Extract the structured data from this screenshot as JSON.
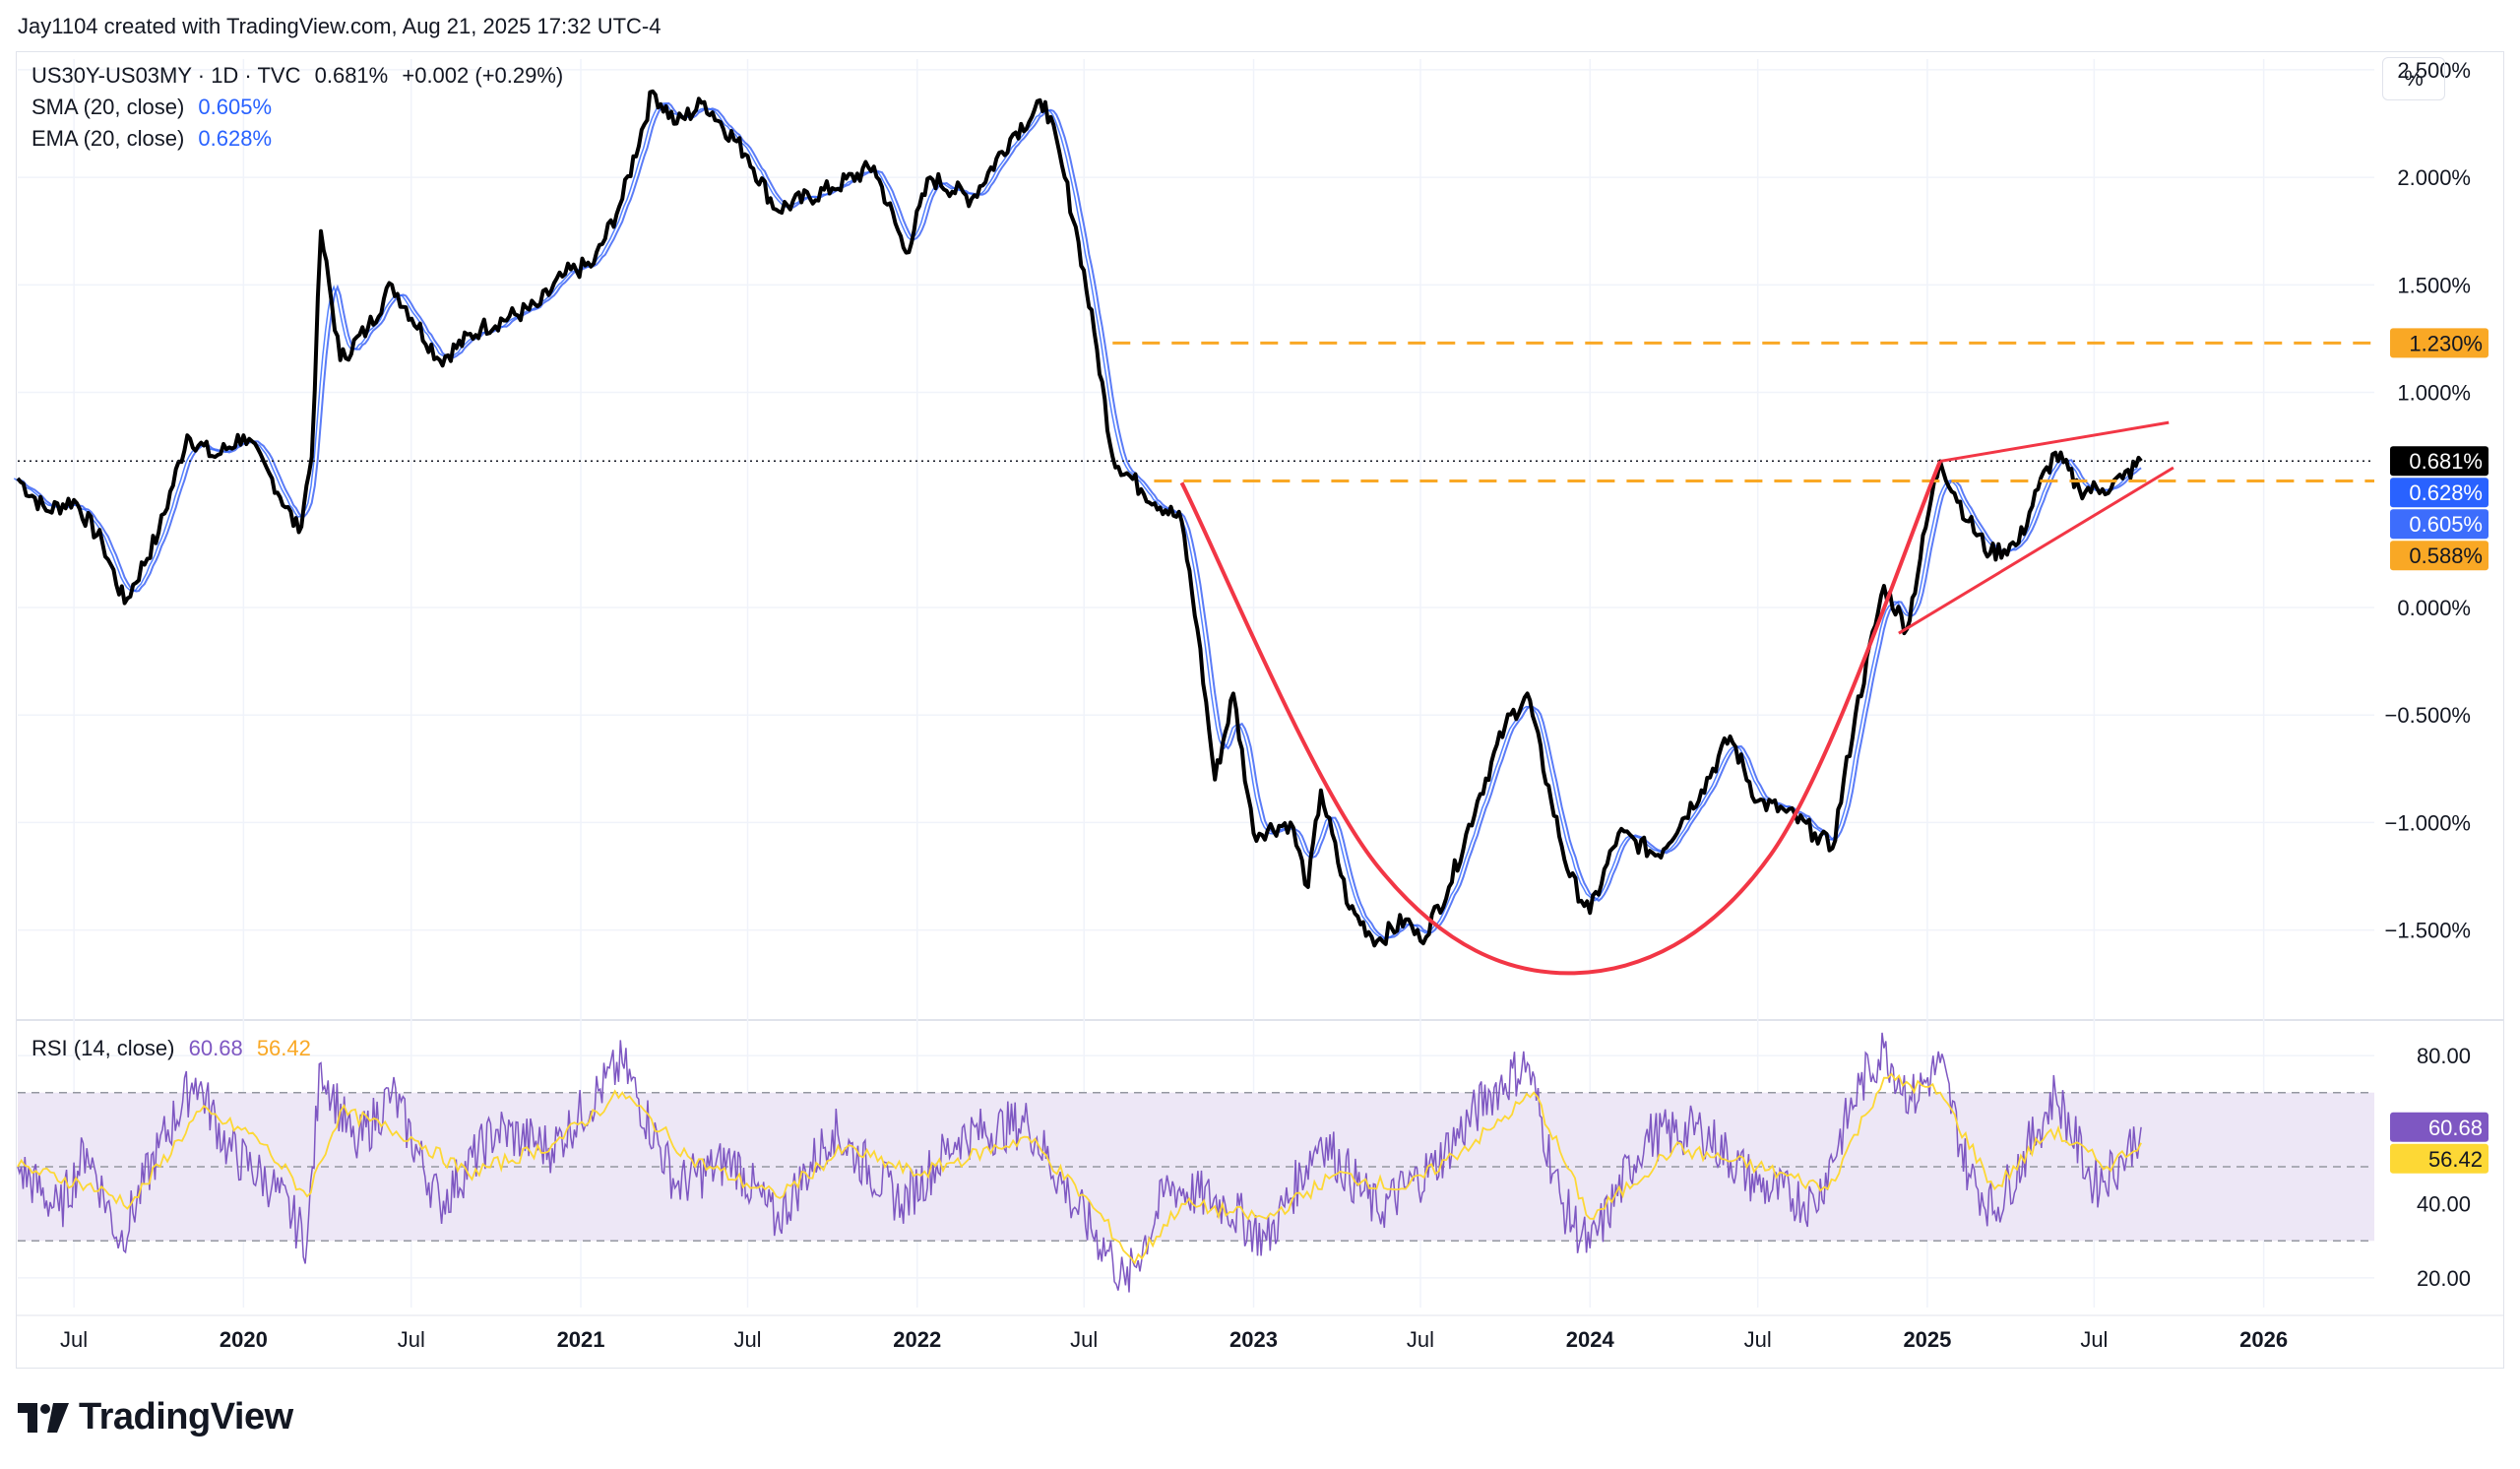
{
  "header": {
    "attribution": "Jay1104 created with TradingView.com, Aug 21, 2025 17:32 UTC-4"
  },
  "main_legend": {
    "symbol": "US30Y-US03MY · 1D · TVC",
    "price": "0.681%",
    "change": "+0.002 (+0.29%)",
    "sma_label": "SMA (20, close)",
    "sma_value": "0.605%",
    "ema_label": "EMA (20, close)",
    "ema_value": "0.628%"
  },
  "rsi_legend": {
    "label": "RSI (14, close)",
    "rsi_value": "60.68",
    "ma_value": "56.42"
  },
  "unit_button": "%",
  "footer": {
    "brand": "TradingView"
  },
  "colors": {
    "price_line": "#000000",
    "sma": "#2962ff",
    "ema": "#5b7cf7",
    "rsi_line": "#7e57c2",
    "rsi_ma": "#fdd835",
    "rsi_band": "#ede7f6",
    "level_line": "#f9a825",
    "drawing": "#f23645",
    "grid": "#f0f3fa"
  },
  "chart_data": [
    {
      "type": "line",
      "title": "US30Y-US03MY · 1D · TVC",
      "y_unit": "%",
      "ylim": [
        -1.9,
        2.55
      ],
      "xlim": [
        "2019-05-01",
        "2026-05-01"
      ],
      "y_ticks": [
        "2.500%",
        "2.000%",
        "1.500%",
        "1.000%",
        "0.000%",
        "−0.500%",
        "−1.000%",
        "−1.500%"
      ],
      "y_tick_values": [
        2.5,
        2.0,
        1.5,
        1.0,
        0.0,
        -0.5,
        -1.0,
        -1.5
      ],
      "x_ticks": [
        "Jul",
        "2020",
        "Jul",
        "2021",
        "Jul",
        "2022",
        "Jul",
        "2023",
        "Jul",
        "2024",
        "Jul",
        "2025",
        "Jul",
        "2026"
      ],
      "x_tick_dates": [
        "2019-07-01",
        "2020-01-01",
        "2020-07-01",
        "2021-01-01",
        "2021-07-01",
        "2022-01-01",
        "2022-07-01",
        "2023-01-01",
        "2023-07-01",
        "2024-01-01",
        "2024-07-01",
        "2025-01-01",
        "2025-07-01",
        "2026-01-01"
      ],
      "series": [
        {
          "name": "US30Y-US03MY",
          "points": [
            [
              "2019-05-01",
              0.6
            ],
            [
              "2019-06-01",
              0.45
            ],
            [
              "2019-07-01",
              0.5
            ],
            [
              "2019-08-01",
              0.3
            ],
            [
              "2019-08-25",
              0.02
            ],
            [
              "2019-10-01",
              0.35
            ],
            [
              "2019-11-01",
              0.8
            ],
            [
              "2019-12-01",
              0.7
            ],
            [
              "2020-01-01",
              0.8
            ],
            [
              "2020-02-01",
              0.6
            ],
            [
              "2020-03-01",
              0.35
            ],
            [
              "2020-03-15",
              0.7
            ],
            [
              "2020-03-25",
              1.75
            ],
            [
              "2020-04-15",
              1.15
            ],
            [
              "2020-05-15",
              1.3
            ],
            [
              "2020-06-10",
              1.5
            ],
            [
              "2020-08-01",
              1.15
            ],
            [
              "2020-09-15",
              1.3
            ],
            [
              "2020-11-15",
              1.4
            ],
            [
              "2020-12-15",
              1.55
            ],
            [
              "2021-01-15",
              1.6
            ],
            [
              "2021-02-15",
              1.9
            ],
            [
              "2021-03-20",
              2.4
            ],
            [
              "2021-04-15",
              2.25
            ],
            [
              "2021-05-15",
              2.35
            ],
            [
              "2021-07-01",
              2.1
            ],
            [
              "2021-08-01",
              1.85
            ],
            [
              "2021-10-01",
              1.95
            ],
            [
              "2021-11-15",
              2.05
            ],
            [
              "2021-12-20",
              1.65
            ],
            [
              "2022-01-15",
              2.0
            ],
            [
              "2022-03-01",
              1.9
            ],
            [
              "2022-04-15",
              2.2
            ],
            [
              "2022-05-20",
              2.35
            ],
            [
              "2022-06-10",
              2.0
            ],
            [
              "2022-06-25",
              1.7
            ],
            [
              "2022-07-15",
              1.2
            ],
            [
              "2022-08-01",
              0.7
            ],
            [
              "2022-09-01",
              0.55
            ],
            [
              "2022-10-15",
              0.4
            ],
            [
              "2022-11-01",
              -0.1
            ],
            [
              "2022-11-20",
              -0.8
            ],
            [
              "2022-12-10",
              -0.4
            ],
            [
              "2023-01-01",
              -1.05
            ],
            [
              "2023-02-10",
              -1.0
            ],
            [
              "2023-03-01",
              -1.3
            ],
            [
              "2023-03-15",
              -0.85
            ],
            [
              "2023-04-15",
              -1.4
            ],
            [
              "2023-05-15",
              -1.55
            ],
            [
              "2023-06-15",
              -1.45
            ],
            [
              "2023-07-01",
              -1.55
            ],
            [
              "2023-08-01",
              -1.3
            ],
            [
              "2023-09-01",
              -0.9
            ],
            [
              "2023-10-01",
              -0.55
            ],
            [
              "2023-10-25",
              -0.4
            ],
            [
              "2023-11-20",
              -0.9
            ],
            [
              "2023-12-10",
              -1.25
            ],
            [
              "2024-01-01",
              -1.42
            ],
            [
              "2024-02-01",
              -1.05
            ],
            [
              "2024-03-15",
              -1.15
            ],
            [
              "2024-05-01",
              -0.85
            ],
            [
              "2024-06-01",
              -0.6
            ],
            [
              "2024-07-01",
              -0.9
            ],
            [
              "2024-08-01",
              -0.95
            ],
            [
              "2024-09-01",
              -1.05
            ],
            [
              "2024-09-20",
              -1.12
            ],
            [
              "2024-10-15",
              -0.5
            ],
            [
              "2024-11-15",
              0.1
            ],
            [
              "2024-12-10",
              -0.1
            ],
            [
              "2025-01-05",
              0.5
            ],
            [
              "2025-01-15",
              0.68
            ],
            [
              "2025-02-15",
              0.4
            ],
            [
              "2025-03-10",
              0.25
            ],
            [
              "2025-04-10",
              0.3
            ],
            [
              "2025-05-01",
              0.55
            ],
            [
              "2025-05-20",
              0.72
            ],
            [
              "2025-06-15",
              0.55
            ],
            [
              "2025-07-10",
              0.55
            ],
            [
              "2025-08-01",
              0.6
            ],
            [
              "2025-08-21",
              0.681
            ]
          ]
        }
      ],
      "moving_averages": [
        {
          "name": "SMA (20, close)",
          "last": 0.605
        },
        {
          "name": "EMA (20, close)",
          "last": 0.628
        }
      ],
      "price_labels": [
        {
          "text": "1.230%",
          "value": 1.23,
          "color": "#f9a825"
        },
        {
          "text": "0.681%",
          "value": 0.681,
          "color": "#000000"
        },
        {
          "text": "0.628%",
          "value": 0.628,
          "color": "#2962ff"
        },
        {
          "text": "0.605%",
          "value": 0.605,
          "color": "#3d6dfc"
        },
        {
          "text": "0.588%",
          "value": 0.588,
          "color": "#f9a825"
        }
      ],
      "horizontal_levels": [
        {
          "value": 1.23,
          "from": "2022-08-01"
        },
        {
          "value": 0.588,
          "from": "2022-09-15"
        }
      ],
      "drawings": {
        "cup_curve": [
          [
            "2022-10-15",
            0.58
          ],
          [
            "2023-05-15",
            -1.2
          ],
          [
            "2023-12-15",
            -1.7
          ],
          [
            "2024-07-15",
            -1.15
          ],
          [
            "2025-01-15",
            0.68
          ]
        ],
        "wedge_upper": [
          [
            "2025-01-15",
            0.68
          ],
          [
            "2025-09-20",
            0.86
          ]
        ],
        "wedge_lower": [
          [
            "2024-12-01",
            -0.12
          ],
          [
            "2025-09-25",
            0.65
          ]
        ]
      }
    },
    {
      "type": "line",
      "title": "RSI (14, close)",
      "ylim": [
        12,
        88
      ],
      "y_ticks": [
        "80.00",
        "40.00",
        "20.00"
      ],
      "y_tick_values": [
        80,
        40,
        20
      ],
      "bands": {
        "upper": 70,
        "middle": 50,
        "lower": 30
      },
      "series": [
        {
          "name": "RSI",
          "last": 60.68,
          "points": [
            [
              "2019-05-01",
              50
            ],
            [
              "2019-06-15",
              38
            ],
            [
              "2019-07-15",
              55
            ],
            [
              "2019-08-20",
              30
            ],
            [
              "2019-10-01",
              55
            ],
            [
              "2019-11-10",
              74
            ],
            [
              "2019-12-15",
              55
            ],
            [
              "2020-02-01",
              45
            ],
            [
              "2020-03-10",
              30
            ],
            [
              "2020-03-25",
              78
            ],
            [
              "2020-05-01",
              55
            ],
            [
              "2020-06-10",
              70
            ],
            [
              "2020-08-01",
              40
            ],
            [
              "2020-10-01",
              60
            ],
            [
              "2020-12-01",
              55
            ],
            [
              "2021-02-15",
              78
            ],
            [
              "2021-04-15",
              45
            ],
            [
              "2021-06-15",
              52
            ],
            [
              "2021-08-01",
              35
            ],
            [
              "2021-10-01",
              60
            ],
            [
              "2021-12-15",
              40
            ],
            [
              "2022-02-15",
              58
            ],
            [
              "2022-05-01",
              62
            ],
            [
              "2022-06-15",
              42
            ],
            [
              "2022-08-01",
              25
            ],
            [
              "2022-08-15",
              18
            ],
            [
              "2022-10-01",
              45
            ],
            [
              "2022-12-01",
              40
            ],
            [
              "2023-01-15",
              30
            ],
            [
              "2023-03-15",
              58
            ],
            [
              "2023-05-15",
              38
            ],
            [
              "2023-07-15",
              50
            ],
            [
              "2023-09-15",
              70
            ],
            [
              "2023-10-25",
              78
            ],
            [
              "2023-12-01",
              40
            ],
            [
              "2024-01-01",
              28
            ],
            [
              "2024-03-01",
              58
            ],
            [
              "2024-05-01",
              60
            ],
            [
              "2024-07-01",
              45
            ],
            [
              "2024-09-01",
              40
            ],
            [
              "2024-10-20",
              72
            ],
            [
              "2024-11-15",
              82
            ],
            [
              "2024-12-15",
              68
            ],
            [
              "2025-01-15",
              78
            ],
            [
              "2025-02-15",
              48
            ],
            [
              "2025-03-15",
              38
            ],
            [
              "2025-05-01",
              60
            ],
            [
              "2025-05-20",
              70
            ],
            [
              "2025-07-01",
              45
            ],
            [
              "2025-08-01",
              52
            ],
            [
              "2025-08-21",
              60.68
            ]
          ]
        },
        {
          "name": "RSI-based MA",
          "last": 56.42,
          "points": [
            [
              "2019-05-01",
              50
            ],
            [
              "2019-07-15",
              45
            ],
            [
              "2019-09-01",
              40
            ],
            [
              "2019-11-15",
              65
            ],
            [
              "2020-01-15",
              58
            ],
            [
              "2020-03-10",
              42
            ],
            [
              "2020-04-15",
              65
            ],
            [
              "2020-07-01",
              58
            ],
            [
              "2020-09-01",
              48
            ],
            [
              "2020-12-01",
              56
            ],
            [
              "2021-02-15",
              70
            ],
            [
              "2021-05-01",
              52
            ],
            [
              "2021-08-01",
              42
            ],
            [
              "2021-10-15",
              55
            ],
            [
              "2022-01-01",
              48
            ],
            [
              "2022-05-01",
              58
            ],
            [
              "2022-07-15",
              38
            ],
            [
              "2022-08-25",
              24
            ],
            [
              "2022-10-15",
              40
            ],
            [
              "2023-01-15",
              36
            ],
            [
              "2023-04-01",
              48
            ],
            [
              "2023-06-15",
              44
            ],
            [
              "2023-09-15",
              60
            ],
            [
              "2023-11-01",
              70
            ],
            [
              "2024-01-01",
              36
            ],
            [
              "2024-04-01",
              55
            ],
            [
              "2024-07-01",
              50
            ],
            [
              "2024-09-15",
              44
            ],
            [
              "2024-11-15",
              74
            ],
            [
              "2025-01-15",
              70
            ],
            [
              "2025-03-15",
              44
            ],
            [
              "2025-05-15",
              60
            ],
            [
              "2025-07-15",
              50
            ],
            [
              "2025-08-21",
              56.42
            ]
          ]
        }
      ],
      "price_labels": [
        {
          "text": "60.68",
          "value": 60.68,
          "color": "#7e57c2"
        },
        {
          "text": "56.42",
          "value": 56.42,
          "color": "#fdd835"
        }
      ]
    }
  ]
}
